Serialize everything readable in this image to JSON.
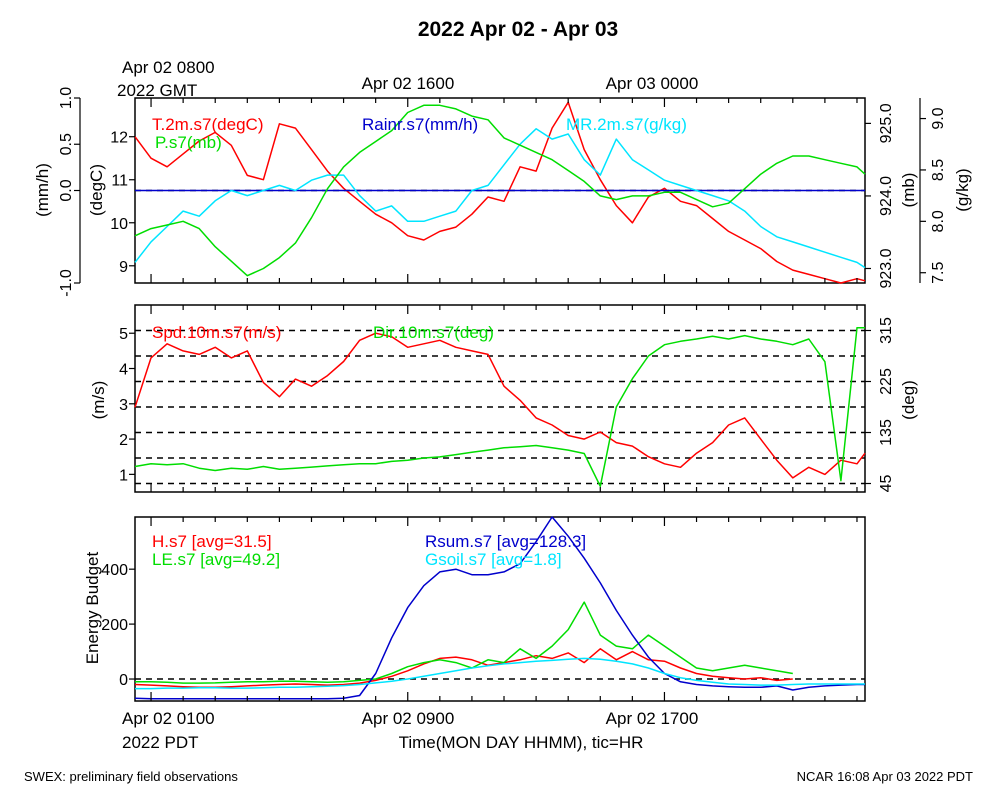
{
  "page": {
    "title": "2022 Apr 02 - Apr 03",
    "footer_left": "SWEX: preliminary field observations",
    "footer_right": "NCAR 16:08 Apr 03 2022 PDT"
  },
  "top_time": {
    "start_line1": "Apr 02 0800",
    "start_line2": "2022 GMT",
    "mid": "Apr 02 1600",
    "end": "Apr 03 0000"
  },
  "bottom_time": {
    "start_line1": "Apr 02 0100",
    "start_line2": "2022 PDT",
    "mid": "Apr 02 0900",
    "end": "Apr 02 1700",
    "xlabel": "Time(MON DAY HHMM), tic=HR"
  },
  "chart_data": [
    {
      "type": "line",
      "name": "panel-1",
      "x_hours_tick_labels": [
        "Apr 02 0100",
        "Apr 02 0900",
        "Apr 02 1700"
      ],
      "xlim_hours_pdt": [
        0.5,
        23.25
      ],
      "axes": {
        "rain": {
          "label": "(mm/h)",
          "ylim": [
            -1.0,
            1.0
          ],
          "ticks": [
            "-1.0",
            "0.0",
            "0.5",
            "1.0"
          ],
          "tick_values": [
            -1.0,
            0.0,
            0.5,
            1.0
          ]
        },
        "temp": {
          "label": "(degC)",
          "ylim": [
            8.6,
            12.9
          ],
          "ticks": [
            "9",
            "10",
            "11",
            "12"
          ],
          "tick_values": [
            9,
            10,
            11,
            12
          ]
        },
        "press": {
          "label": "(mb)",
          "ylim": [
            922.8,
            925.35
          ],
          "ticks": [
            "923.0",
            "924.0",
            "925.0"
          ],
          "tick_values": [
            923.0,
            924.0,
            925.0
          ]
        },
        "mr": {
          "label": "(g/kg)",
          "ylim": [
            7.4,
            9.2
          ],
          "ticks": [
            "7.5",
            "8.0",
            "8.5",
            "9.0"
          ],
          "tick_values": [
            7.5,
            8.0,
            8.5,
            9.0
          ]
        }
      },
      "dashed_lines": {
        "rain": [
          0.0
        ]
      },
      "series": [
        {
          "name": "T.2m.s7(degC)",
          "axis": "temp",
          "color": "#ff0000",
          "x": [
            0.5,
            1,
            1.5,
            2,
            2.5,
            3,
            3.5,
            4,
            4.5,
            5,
            5.5,
            6,
            6.5,
            7,
            7.5,
            8,
            8.5,
            9,
            9.5,
            10,
            10.5,
            11,
            11.5,
            12,
            12.5,
            13,
            13.5,
            14,
            14.5,
            15,
            15.5,
            16,
            16.5,
            17,
            17.5,
            18,
            18.5,
            19,
            19.5,
            20,
            20.5,
            21,
            21.5,
            22,
            22.5,
            23,
            23.25
          ],
          "y": [
            12.0,
            11.5,
            11.3,
            11.6,
            11.9,
            12.1,
            11.8,
            11.1,
            11.0,
            12.3,
            12.2,
            11.7,
            11.2,
            10.8,
            10.5,
            10.2,
            10.0,
            9.7,
            9.6,
            9.8,
            9.9,
            10.2,
            10.6,
            10.5,
            11.3,
            11.2,
            12.2,
            12.8,
            11.7,
            11.0,
            10.4,
            10.0,
            10.6,
            10.8,
            10.5,
            10.4,
            10.1,
            9.8,
            9.6,
            9.4,
            9.1,
            8.9,
            8.8,
            8.7,
            8.6,
            8.7,
            8.65
          ]
        },
        {
          "name": "Rainr.s7(mm/h)",
          "axis": "rain",
          "color": "#0000cc",
          "x": [
            0.5,
            23.25
          ],
          "y": [
            0.0,
            0.0
          ]
        },
        {
          "name": "MR.2m.s7(g/kg)",
          "axis": "mr",
          "color": "#00e5ff",
          "x": [
            0.5,
            1,
            1.5,
            2,
            2.5,
            3,
            3.5,
            4,
            4.5,
            5,
            5.5,
            6,
            6.5,
            7,
            7.5,
            8,
            8.5,
            9,
            9.5,
            10,
            10.5,
            11,
            11.5,
            12,
            12.5,
            13,
            13.5,
            14,
            14.5,
            15,
            15.5,
            16,
            16.5,
            17,
            17.5,
            18,
            18.5,
            19,
            19.5,
            20,
            20.5,
            21,
            21.5,
            22,
            22.5,
            23,
            23.25
          ],
          "y": [
            7.6,
            7.8,
            7.95,
            8.1,
            8.05,
            8.2,
            8.3,
            8.25,
            8.3,
            8.35,
            8.3,
            8.4,
            8.45,
            8.45,
            8.25,
            8.1,
            8.15,
            8.0,
            8.0,
            8.05,
            8.1,
            8.3,
            8.35,
            8.55,
            8.75,
            8.9,
            8.8,
            8.85,
            8.6,
            8.45,
            8.8,
            8.6,
            8.5,
            8.4,
            8.35,
            8.3,
            8.25,
            8.2,
            8.1,
            7.95,
            7.85,
            7.8,
            7.75,
            7.7,
            7.65,
            7.6,
            7.55
          ]
        },
        {
          "name": "P.s7(mb)",
          "axis": "press",
          "color": "#00dd00",
          "x": [
            0.5,
            1,
            1.5,
            2,
            2.5,
            3,
            3.5,
            4,
            4.5,
            5,
            5.5,
            6,
            6.5,
            7,
            7.5,
            8,
            8.5,
            9,
            9.5,
            10,
            10.5,
            11,
            11.5,
            12,
            12.5,
            13,
            13.5,
            14,
            14.5,
            15,
            15.5,
            16,
            16.5,
            17,
            17.5,
            18,
            18.5,
            19,
            19.5,
            20,
            20.5,
            21,
            21.5,
            22,
            22.5,
            23,
            23.25
          ],
          "y": [
            923.45,
            923.55,
            923.6,
            923.65,
            923.55,
            923.3,
            923.1,
            922.9,
            923.0,
            923.15,
            923.35,
            923.7,
            924.1,
            924.4,
            924.6,
            924.75,
            924.9,
            925.15,
            925.25,
            925.25,
            925.2,
            925.1,
            925.05,
            924.8,
            924.7,
            924.6,
            924.5,
            924.35,
            924.2,
            924.0,
            923.95,
            924.0,
            924.0,
            924.05,
            924.05,
            923.95,
            923.85,
            923.9,
            924.1,
            924.3,
            924.45,
            924.55,
            924.55,
            924.5,
            924.45,
            924.4,
            924.3
          ]
        }
      ]
    },
    {
      "type": "line",
      "name": "panel-2",
      "xlim_hours_pdt": [
        0.5,
        23.25
      ],
      "axes": {
        "spd": {
          "label": "(m/s)",
          "ylim": [
            0.5,
            5.8
          ],
          "ticks": [
            "1",
            "2",
            "3",
            "4",
            "5"
          ],
          "tick_values": [
            1,
            2,
            3,
            4,
            5
          ]
        },
        "dir": {
          "label": "(deg)",
          "ylim": [
            30,
            360
          ],
          "ticks": [
            "45",
            "135",
            "225",
            "315"
          ],
          "tick_values": [
            45,
            135,
            225,
            315
          ]
        }
      },
      "dashed_lines": {
        "dir": [
          45,
          90,
          135,
          180,
          225,
          270,
          315
        ]
      },
      "series": [
        {
          "name": "Spd.10m.s7(m/s)",
          "axis": "spd",
          "color": "#ff0000",
          "x": [
            0.5,
            1,
            1.5,
            2,
            2.5,
            3,
            3.5,
            4,
            4.5,
            5,
            5.5,
            6,
            6.5,
            7,
            7.5,
            8,
            8.5,
            9,
            9.5,
            10,
            10.5,
            11,
            11.5,
            12,
            12.5,
            13,
            13.5,
            14,
            14.5,
            15,
            15.5,
            16,
            16.5,
            17,
            17.5,
            18,
            18.5,
            19,
            19.5,
            20,
            20.5,
            21,
            21.5,
            22,
            22.5,
            23,
            23.25
          ],
          "y": [
            2.9,
            4.3,
            4.7,
            4.5,
            4.4,
            4.6,
            4.3,
            4.5,
            3.6,
            3.2,
            3.7,
            3.5,
            3.8,
            4.2,
            4.8,
            5.0,
            4.9,
            4.6,
            4.7,
            4.8,
            4.6,
            4.5,
            4.4,
            3.5,
            3.1,
            2.6,
            2.4,
            2.1,
            2.0,
            2.2,
            1.9,
            1.8,
            1.5,
            1.3,
            1.2,
            1.6,
            1.9,
            2.4,
            2.6,
            2.0,
            1.4,
            0.9,
            1.2,
            1.0,
            1.4,
            1.3,
            1.6
          ]
        },
        {
          "name": "Dir.10m.s7(deg)",
          "axis": "dir",
          "color": "#00dd00",
          "x": [
            0.5,
            1,
            1.5,
            2,
            2.5,
            3,
            3.5,
            4,
            4.5,
            5,
            5.5,
            6,
            6.5,
            7,
            7.5,
            8,
            8.5,
            9,
            9.5,
            10,
            10.5,
            11,
            11.5,
            12,
            12.5,
            13,
            13.5,
            14,
            14.5,
            15,
            15.5,
            16,
            16.5,
            17,
            17.5,
            18,
            18.5,
            19,
            19.5,
            20,
            20.5,
            21,
            21.5,
            22,
            22.5,
            23,
            23.25
          ],
          "y": [
            75,
            80,
            78,
            80,
            72,
            68,
            72,
            70,
            75,
            70,
            72,
            74,
            76,
            78,
            80,
            80,
            84,
            86,
            90,
            92,
            96,
            100,
            104,
            108,
            110,
            112,
            108,
            104,
            98,
            40,
            180,
            230,
            270,
            290,
            296,
            300,
            305,
            300,
            306,
            300,
            296,
            290,
            300,
            260,
            50,
            320,
            320
          ]
        }
      ]
    },
    {
      "type": "line",
      "name": "panel-3",
      "xlim_hours_pdt": [
        0.5,
        23.25
      ],
      "ylabel": "Energy Budget",
      "ylim": [
        -80,
        590
      ],
      "ticks": [
        "0",
        "200",
        "400"
      ],
      "tick_values": [
        0,
        200,
        400
      ],
      "dashed_lines": [
        0
      ],
      "series": [
        {
          "name": "H.s7",
          "legend": "H.s7 [avg=31.5]",
          "color": "#ff0000",
          "x": [
            0.5,
            1,
            1.5,
            2,
            2.5,
            3,
            3.5,
            4,
            4.5,
            5,
            5.5,
            6,
            6.5,
            7,
            7.5,
            8,
            8.5,
            9,
            9.5,
            10,
            10.5,
            11,
            11.5,
            12,
            12.5,
            13,
            13.5,
            14,
            14.5,
            15,
            15.5,
            16,
            16.5,
            17,
            17.5,
            18,
            18.5,
            19,
            19.5,
            20,
            20.5,
            21
          ],
          "y": [
            -20,
            -22,
            -25,
            -28,
            -30,
            -30,
            -28,
            -25,
            -22,
            -20,
            -18,
            -20,
            -22,
            -20,
            -15,
            -5,
            10,
            30,
            55,
            75,
            80,
            70,
            50,
            60,
            70,
            85,
            75,
            95,
            60,
            110,
            70,
            100,
            70,
            65,
            40,
            20,
            10,
            5,
            0,
            5,
            -5,
            0
          ]
        },
        {
          "name": "LE.s7",
          "legend": "LE.s7 [avg=49.2]",
          "color": "#00dd00",
          "x": [
            0.5,
            1,
            1.5,
            2,
            2.5,
            3,
            3.5,
            4,
            4.5,
            5,
            5.5,
            6,
            6.5,
            7,
            7.5,
            8,
            8.5,
            9,
            9.5,
            10,
            10.5,
            11,
            11.5,
            12,
            12.5,
            13,
            13.5,
            14,
            14.5,
            15,
            15.5,
            16,
            16.5,
            17,
            17.5,
            18,
            18.5,
            19,
            19.5,
            20,
            20.5,
            21
          ],
          "y": [
            -10,
            -10,
            -12,
            -15,
            -15,
            -14,
            -12,
            -10,
            -10,
            -8,
            -8,
            -10,
            -12,
            -10,
            -5,
            0,
            20,
            45,
            60,
            70,
            60,
            40,
            70,
            60,
            110,
            75,
            120,
            180,
            280,
            160,
            120,
            110,
            160,
            120,
            80,
            40,
            30,
            40,
            50,
            40,
            30,
            20
          ]
        },
        {
          "name": "Rsum.s7",
          "legend": "Rsum.s7 [avg=128.3]",
          "color": "#0000cc",
          "x": [
            0.5,
            1,
            1.5,
            2,
            2.5,
            3,
            3.5,
            4,
            4.5,
            5,
            5.5,
            6,
            6.5,
            7,
            7.5,
            8,
            8.5,
            9,
            9.5,
            10,
            10.5,
            11,
            11.5,
            12,
            12.5,
            13,
            13.5,
            14,
            14.5,
            15,
            15.5,
            16,
            16.5,
            17,
            17.5,
            18,
            18.5,
            19,
            19.5,
            20,
            20.5,
            21,
            21.5,
            22,
            22.5,
            23,
            23.25
          ],
          "y": [
            -70,
            -72,
            -72,
            -72,
            -72,
            -72,
            -72,
            -72,
            -72,
            -72,
            -72,
            -72,
            -72,
            -70,
            -60,
            20,
            150,
            260,
            340,
            390,
            400,
            380,
            380,
            390,
            420,
            500,
            600,
            520,
            440,
            350,
            250,
            160,
            80,
            20,
            -10,
            -20,
            -25,
            -28,
            -30,
            -30,
            -25,
            -40,
            -30,
            -25,
            -22,
            -20,
            -20
          ]
        },
        {
          "name": "Gsoil.s7",
          "legend": "Gsoil.s7 [avg=1.8]",
          "color": "#00e5ff",
          "x": [
            0.5,
            1,
            1.5,
            2,
            2.5,
            3,
            3.5,
            4,
            4.5,
            5,
            5.5,
            6,
            6.5,
            7,
            7.5,
            8,
            8.5,
            9,
            9.5,
            10,
            10.5,
            11,
            11.5,
            12,
            12.5,
            13,
            13.5,
            14,
            14.5,
            15,
            15.5,
            16,
            16.5,
            17,
            17.5,
            18,
            18.5,
            19,
            19.5,
            20,
            20.5,
            21,
            21.5,
            22,
            22.5,
            23,
            23.25
          ],
          "y": [
            -35,
            -35,
            -33,
            -33,
            -32,
            -32,
            -33,
            -33,
            -32,
            -30,
            -30,
            -28,
            -26,
            -24,
            -20,
            -14,
            -8,
            0,
            10,
            20,
            30,
            40,
            48,
            55,
            60,
            65,
            68,
            72,
            75,
            72,
            65,
            55,
            40,
            20,
            5,
            -5,
            -12,
            -18,
            -20,
            -22,
            -22,
            -20,
            -18,
            -18,
            -18,
            -18,
            -18
          ]
        }
      ]
    }
  ]
}
